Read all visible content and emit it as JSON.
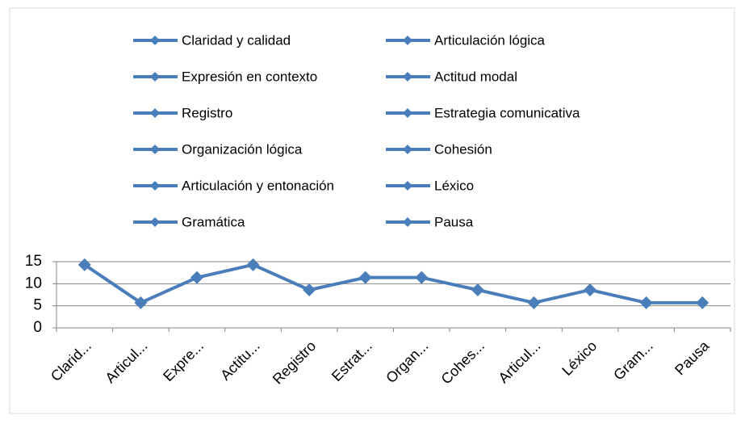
{
  "chart_data": {
    "type": "line",
    "legend": [
      "Claridad y calidad",
      "Articulación lógica",
      "Expresión en contexto",
      "Actitud modal",
      "Registro",
      "Estrategia comunicativa",
      "Organización lógica",
      "Cohesión",
      "Articulación y entonación",
      "Léxico",
      "Gramática",
      "Pausa"
    ],
    "categories": [
      "Clarid...",
      "Articul...",
      "Expre...",
      "Actitu...",
      "Registro",
      "Estrat...",
      "Organ...",
      "Cohes...",
      "Articul...",
      "Léxico",
      "Gram...",
      "Pausa"
    ],
    "values": [
      14.3,
      5.7,
      11.4,
      14.3,
      8.6,
      11.4,
      11.4,
      8.6,
      5.7,
      8.6,
      5.7,
      5.7
    ],
    "color": "#4a7ebb",
    "ylim": [
      0,
      15
    ],
    "yticks": [
      0,
      5,
      10,
      15
    ],
    "grid": true
  }
}
